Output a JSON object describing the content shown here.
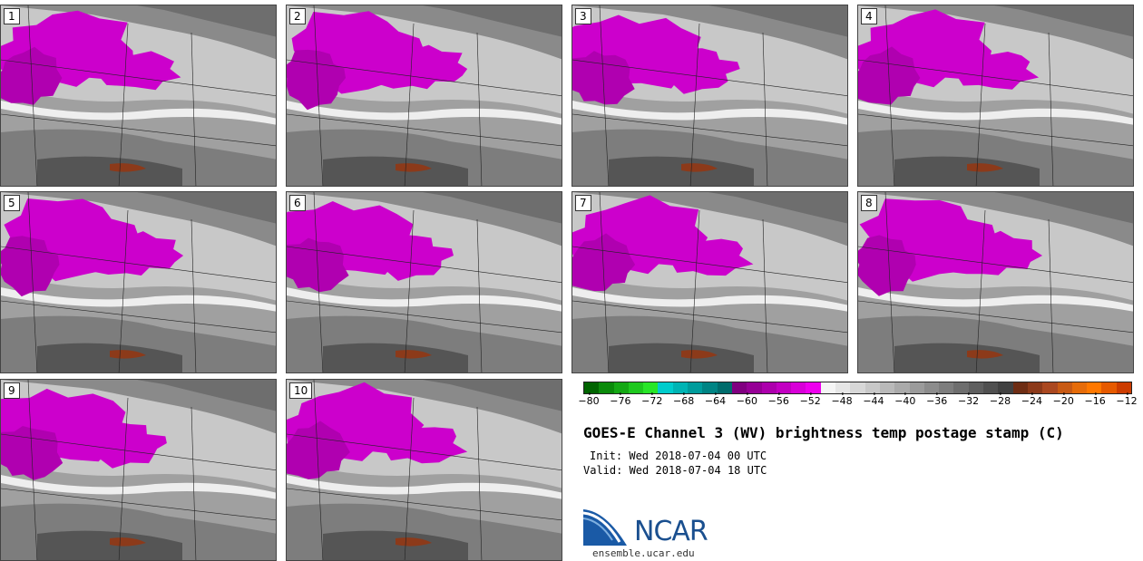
{
  "panels": [
    {
      "label": "1"
    },
    {
      "label": "2"
    },
    {
      "label": "3"
    },
    {
      "label": "4"
    },
    {
      "label": "5"
    },
    {
      "label": "6"
    },
    {
      "label": "7"
    },
    {
      "label": "8"
    },
    {
      "label": "9"
    },
    {
      "label": "10"
    }
  ],
  "colorbar": {
    "colors": [
      "#006400",
      "#0a8a0a",
      "#14a814",
      "#1ec81e",
      "#28e628",
      "#00cccc",
      "#00b4b4",
      "#009c9c",
      "#008484",
      "#006c6c",
      "#800080",
      "#960096",
      "#ac00ac",
      "#c200c2",
      "#d800d8",
      "#ee00ee",
      "#f5f5f5",
      "#e6e6e6",
      "#d7d7d7",
      "#c8c8c8",
      "#b9b9b9",
      "#aaaaaa",
      "#9b9b9b",
      "#8c8c8c",
      "#7d7d7d",
      "#6e6e6e",
      "#5f5f5f",
      "#505050",
      "#414141",
      "#6e2d14",
      "#8c3a1a",
      "#aa4820",
      "#c85a14",
      "#e66c0a",
      "#ff7800",
      "#e65a00",
      "#cc3c00"
    ],
    "tick_labels": [
      "−80",
      "−76",
      "−72",
      "−68",
      "−64",
      "−60",
      "−56",
      "−52",
      "−48",
      "−44",
      "−40",
      "−36",
      "−32",
      "−28",
      "−24",
      "−20",
      "−16",
      "−12"
    ],
    "range": [
      -81,
      -10
    ]
  },
  "title": "GOES-E Channel 3 (WV) brightness temp postage stamp (C)",
  "init": "Init: Wed 2018-07-04 00 UTC",
  "valid": "Valid: Wed 2018-07-04 18 UTC",
  "logo": {
    "text": "NCAR",
    "url": "ensemble.ucar.edu"
  }
}
